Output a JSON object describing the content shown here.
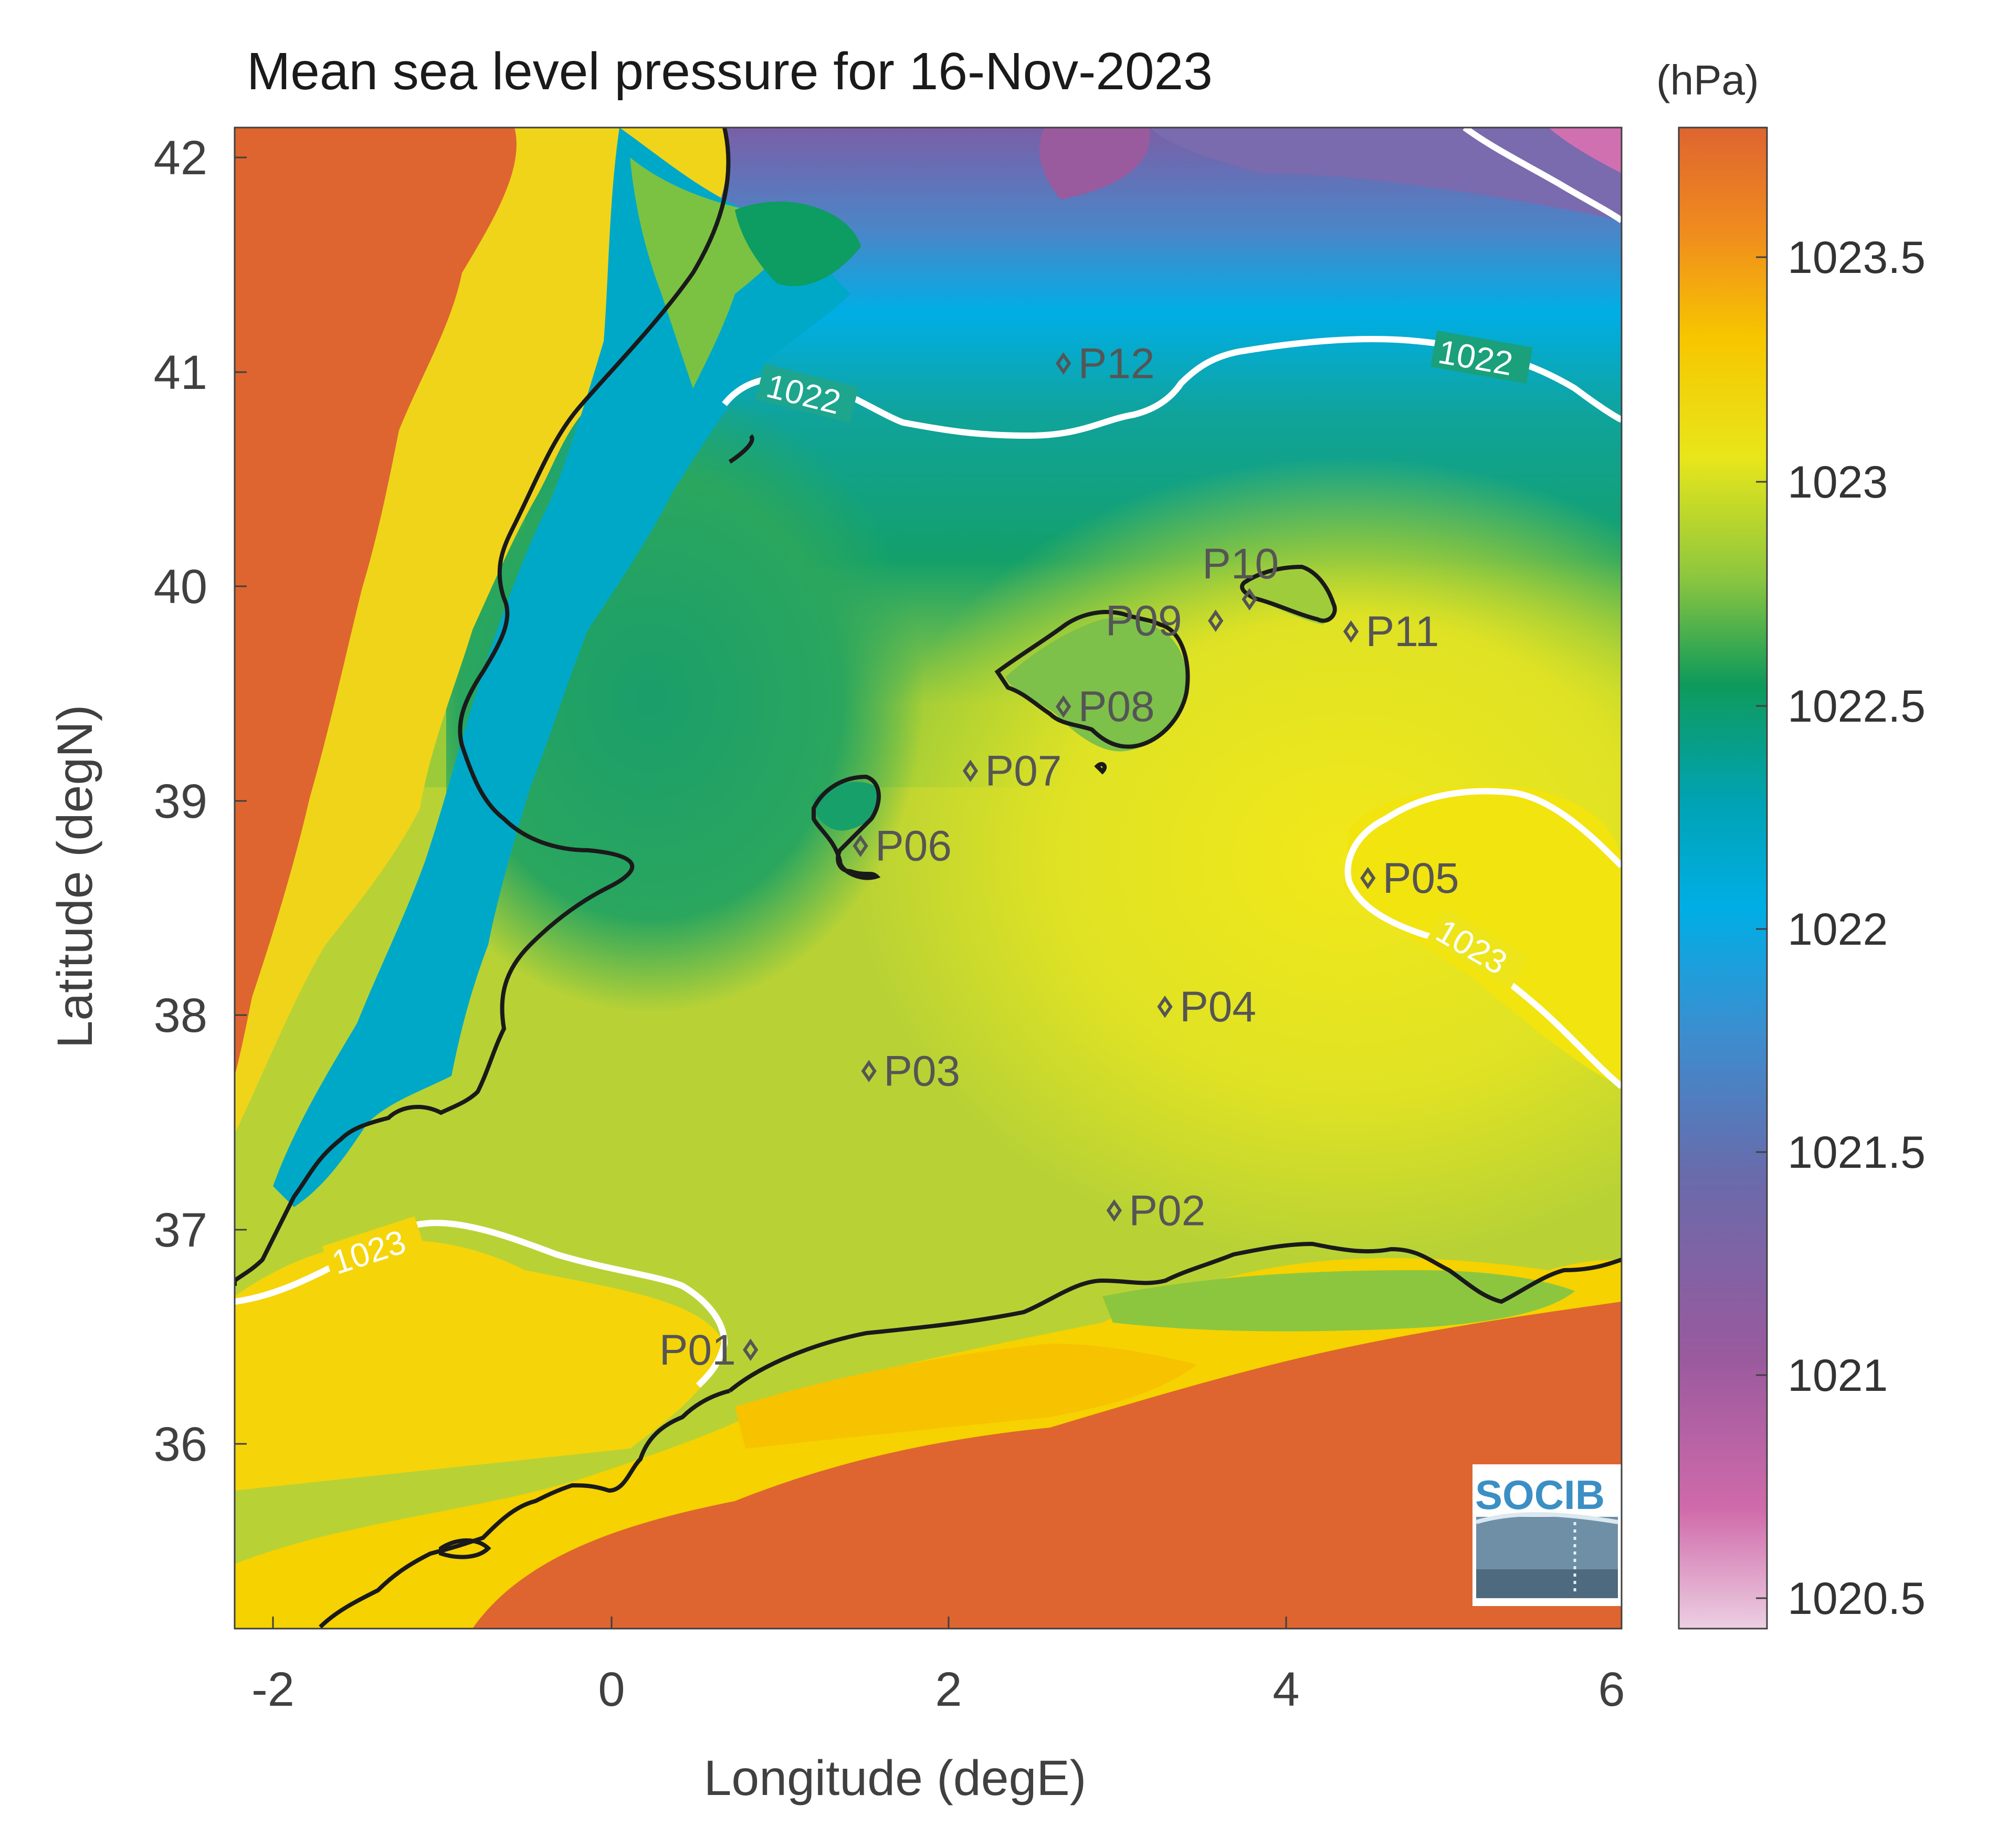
{
  "title": "Mean sea level pressure for 16-Nov-2023",
  "units": "(hPa)",
  "x_label": "Longitude (degE)",
  "y_label": "Latitude (degN)",
  "x_ticks": [
    "-2",
    "0",
    "2",
    "4",
    "6"
  ],
  "y_ticks": [
    "42",
    "41",
    "40",
    "39",
    "38",
    "37",
    "36"
  ],
  "colorbar_ticks": [
    "1023.5",
    "1023",
    "1022.5",
    "1022",
    "1021.5",
    "1021",
    "1020.5"
  ],
  "logo_text": "SOCIB",
  "map": {
    "lon_range": [
      -2.2,
      6.0
    ],
    "lat_range": [
      35.2,
      42.2
    ],
    "colorbar_range": [
      1020.45,
      1023.8
    ],
    "colormap": [
      "#e9c8dc",
      "#d06aaa",
      "#9a5a9e",
      "#6a6aaa",
      "#3a8fd0",
      "#00aee6",
      "#00a0b0",
      "#13a38a",
      "#0f9a5a",
      "#8cc63f",
      "#e8e61a",
      "#f7c600",
      "#f08c1e",
      "#de6530"
    ],
    "land_color": "#de6530",
    "contour_color": "#ffffff",
    "coast_color": "#1a1a1a"
  },
  "points": [
    {
      "id": "P01",
      "lon": 0.85,
      "lat": 36.5
    },
    {
      "id": "P02",
      "lon": 3.0,
      "lat": 37.15
    },
    {
      "id": "P03",
      "lon": 1.55,
      "lat": 37.8
    },
    {
      "id": "P04",
      "lon": 3.3,
      "lat": 38.1
    },
    {
      "id": "P05",
      "lon": 4.5,
      "lat": 38.7
    },
    {
      "id": "P06",
      "lon": 1.5,
      "lat": 38.85
    },
    {
      "id": "P07",
      "lon": 2.15,
      "lat": 39.2
    },
    {
      "id": "P08",
      "lon": 2.7,
      "lat": 39.5
    },
    {
      "id": "P09",
      "lon": 3.6,
      "lat": 39.9
    },
    {
      "id": "P10",
      "lon": 3.8,
      "lat": 40.0
    },
    {
      "id": "P11",
      "lon": 4.4,
      "lat": 39.85
    },
    {
      "id": "P12",
      "lon": 2.7,
      "lat": 41.1
    }
  ],
  "contour_labels": [
    "1022",
    "1022",
    "1023",
    "1023"
  ]
}
